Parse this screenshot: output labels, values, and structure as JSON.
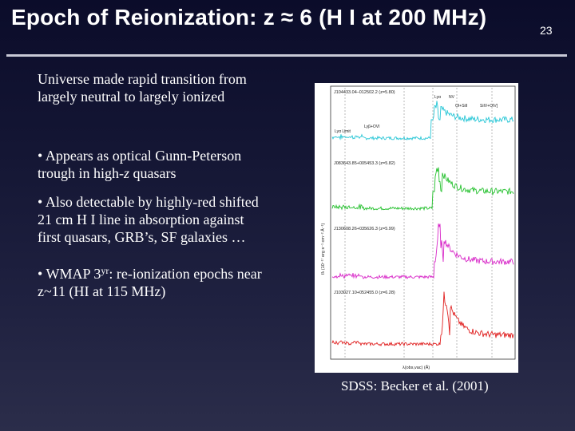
{
  "slide": {
    "title": "Epoch of Reionization: z ≈ 6 (H I at 200 MHz)",
    "number": "23"
  },
  "body": {
    "intro_line1": "Universe made rapid transition from",
    "intro_line2": "largely neutral to largely ionized",
    "b1_bullet": "•",
    "b1_line1": "Appears as optical Gunn-Peterson",
    "b1_line2a": "trough in high-",
    "b1_z": "z",
    "b1_line2b": " quasars",
    "b2_bullet": "•",
    "b2_line1": "Also detectable by highly-red shifted",
    "b2_line2": "21 cm H I line in absorption against",
    "b2_line3": "first quasars, GRB’s, SF galaxies …",
    "b3_bullet": "•",
    "b3_line1a": "WMAP 3",
    "b3_sup": "yr",
    "b3_line1b": ": re-ionization epochs near",
    "b3_line2": "z~11 (HI at 115 MHz)"
  },
  "figure": {
    "panels": [
      {
        "label": "J104433.04–012502.2 (z=5.80)",
        "color": "#27c6d6"
      },
      {
        "label": "J083643.85+005453.3 (z=5.82)",
        "color": "#23c02c"
      },
      {
        "label": "J130608.26+035626.3 (z=5.99)",
        "color": "#d828c8"
      },
      {
        "label": "J103027.10+052455.0 (z=6.28)",
        "color": "#e02020"
      }
    ],
    "annotations": {
      "lyb": "Lyβ+OVI",
      "lya": "Lyα",
      "nv": "NV",
      "oi": "OI+SiII",
      "siiv": "SiIV+OIV]",
      "lylimit": "Lyα Limit"
    },
    "ylabel": "fλ (10⁻¹⁷ erg s⁻¹ cm⁻² Å⁻¹)",
    "xlabel": "λ(obs,vac) (Å)"
  },
  "caption": "SDSS: Becker et al. (2001)"
}
